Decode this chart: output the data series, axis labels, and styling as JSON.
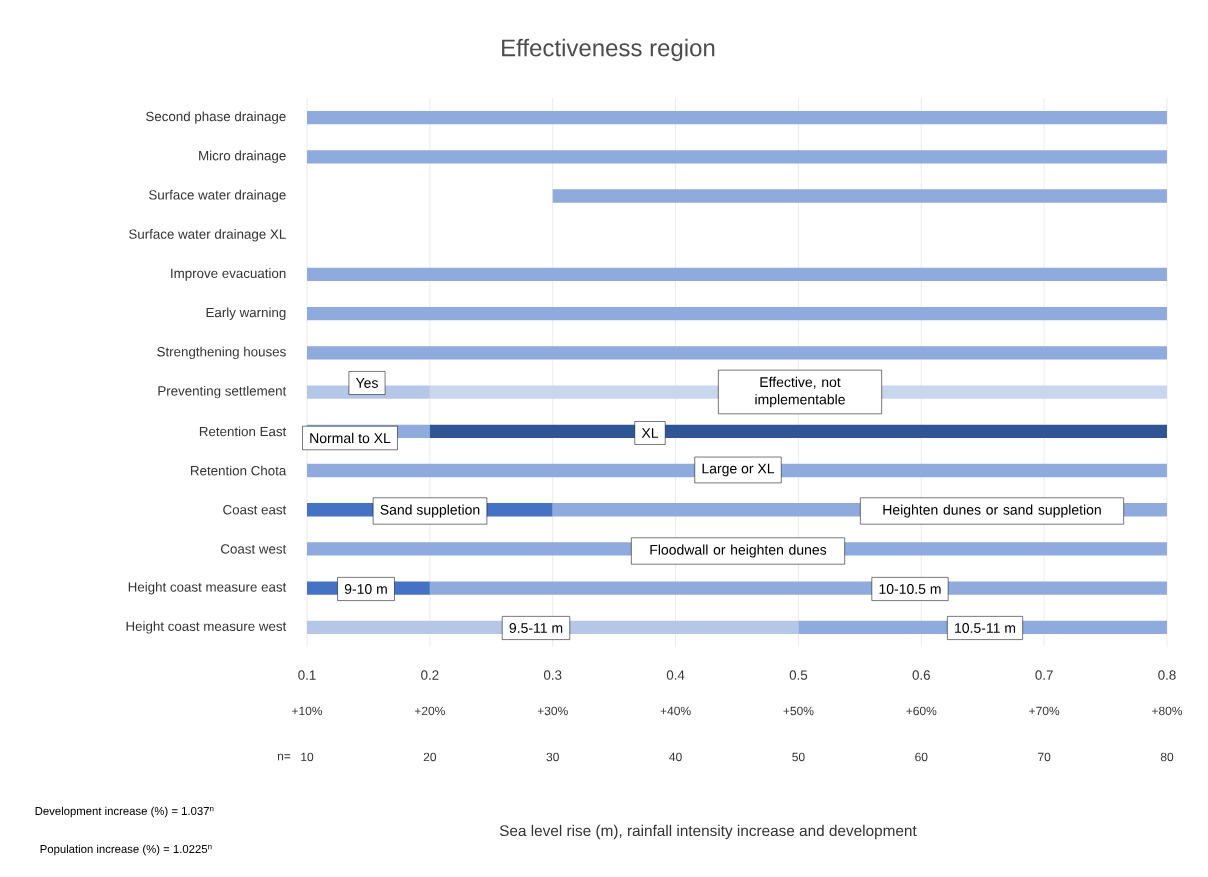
{
  "chart_data": {
    "type": "bar",
    "orientation": "horizontal",
    "title": "Effectiveness region",
    "categories": [
      "Second phase drainage",
      "Micro drainage",
      "Surface water drainage",
      "Surface water drainage XL",
      "Improve evacuation",
      "Early warning",
      "Strengthening houses",
      "Preventing settlement",
      "Retention East",
      "Retention Chota",
      "Coast east",
      "Coast west",
      "Height coast measure east",
      "Height coast measure west"
    ],
    "series": [
      {
        "base": [
          0.1,
          0.1,
          0.3,
          null,
          0.1,
          0.1,
          0.1,
          0.1,
          0.1,
          0.1,
          0.1,
          0.1,
          0.1,
          0.1
        ],
        "values": [
          0.7,
          0.7,
          0.5,
          null,
          0.7,
          0.7,
          0.7,
          0.1,
          0.1,
          0.7,
          0.2,
          0.7,
          0.1,
          0.4
        ],
        "colors": [
          "#8faadc",
          "#8faadc",
          "#8faadc",
          null,
          "#8faadc",
          "#8faadc",
          "#8faadc",
          "#b4c7e7",
          "#8faadc",
          "#8faadc",
          "#4472c4",
          "#8faadc",
          "#4472c4",
          "#b4c7e7"
        ]
      },
      {
        "base": [
          null,
          null,
          null,
          null,
          null,
          null,
          null,
          0.2,
          0.2,
          null,
          0.3,
          null,
          0.2,
          0.5
        ],
        "values": [
          null,
          null,
          null,
          null,
          null,
          null,
          null,
          0.6,
          0.6,
          null,
          0.5,
          null,
          0.6,
          0.3
        ],
        "colors": [
          null,
          null,
          null,
          null,
          null,
          null,
          null,
          "#c9d6ee",
          "#2f5597",
          null,
          "#8faadc",
          null,
          "#8faadc",
          "#8faadc"
        ]
      }
    ],
    "xlim": [
      0.1,
      0.8
    ],
    "xticks": [
      0.1,
      0.2,
      0.3,
      0.4,
      0.5,
      0.6,
      0.7,
      0.8
    ],
    "x2lim": [
      0.1,
      0.8
    ],
    "x2ticks": [
      {
        "value": 0.1,
        "label": "+10%"
      },
      {
        "value": 0.2,
        "label": "+20%"
      },
      {
        "value": 0.3,
        "label": "+30%"
      },
      {
        "value": 0.4,
        "label": "+40%"
      },
      {
        "value": 0.5,
        "label": "+50%"
      },
      {
        "value": 0.6,
        "label": "+60%"
      },
      {
        "value": 0.7,
        "label": "+70%"
      },
      {
        "value": 0.8,
        "label": "+80%"
      }
    ],
    "grid": "x",
    "annotations": [
      "Yes",
      "Effective, not implementable",
      "Normal to XL",
      "XL",
      "Large or XL",
      "Sand suppletion",
      "Heighten dunes or sand suppletion",
      "Floodwall or heighten dunes",
      "9-10 m",
      "10-10.5 m",
      "9.5-11 m",
      "10.5-11 m",
      "Sea level rise (m), rainfall intensity increase and development",
      "Development increase (%) = 1.037$^{n}$",
      "Population increase (%) = 1.0225$^{n}$",
      "n=",
      "10",
      "20",
      "30",
      "40",
      "50",
      "60",
      "70",
      "80"
    ]
  }
}
